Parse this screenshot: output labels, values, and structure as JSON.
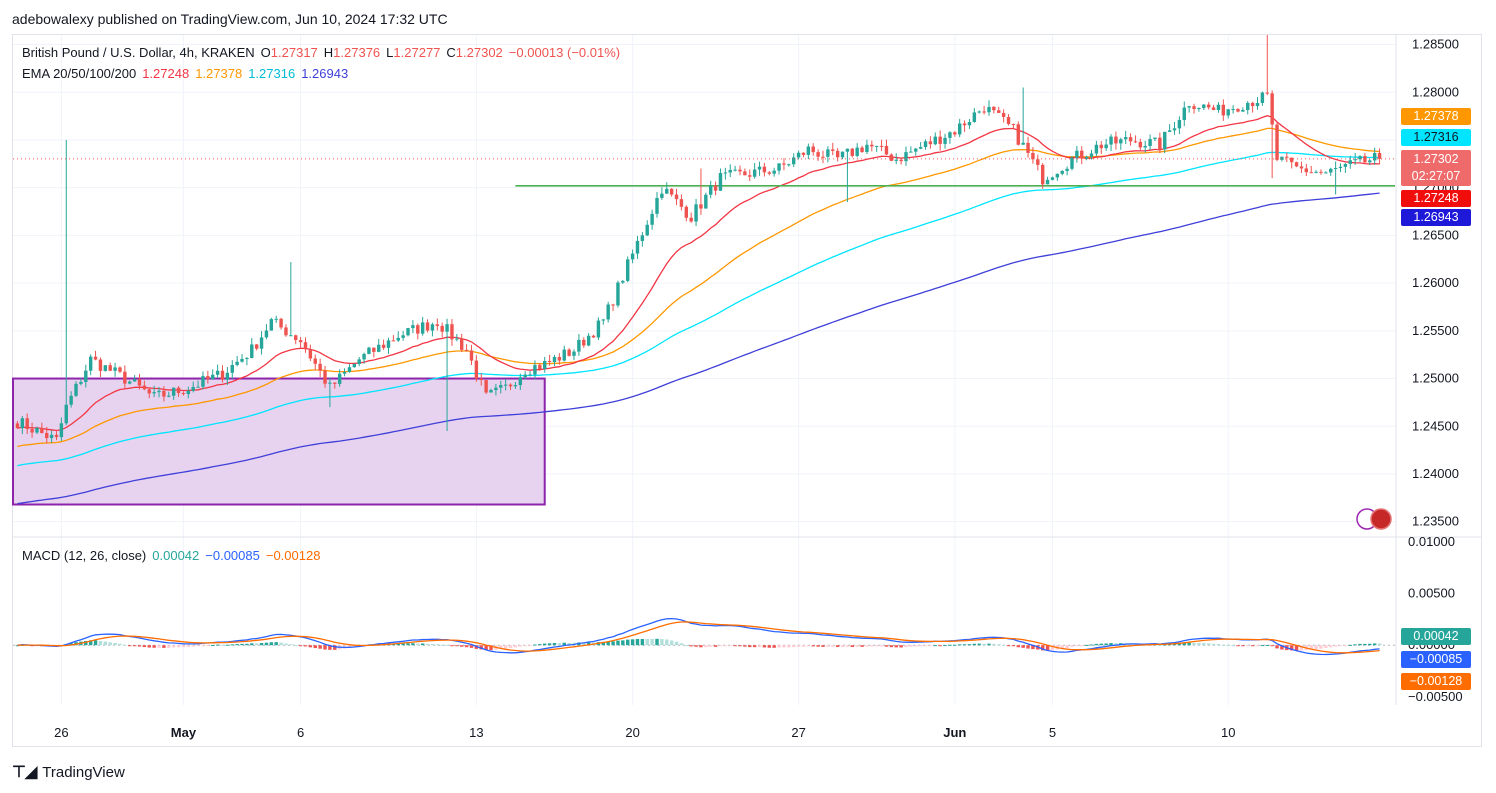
{
  "publisher": "adebowalexy published on TradingView.com, Jun 10, 2024 17:32 UTC",
  "footer_brand": "TradingView",
  "colors": {
    "up": "#26a69a",
    "down": "#ef5350",
    "ema20": "#f23645",
    "ema50": "#ff9800",
    "ema100": "#00e5ff",
    "ema200": "#3f3fd9",
    "support": "#4caf50",
    "box_fill": "#e7d3ef",
    "box_border": "#8e24aa",
    "macd": "#2962ff",
    "signal": "#ff6d00"
  },
  "price_legend": {
    "symbol": "British Pound / U.S. Dollar, 4h, KRAKEN",
    "o_label": "O",
    "o": "1.27317",
    "h_label": "H",
    "h": "1.27376",
    "l_label": "L",
    "l": "1.27277",
    "c_label": "C",
    "c": "1.27302",
    "change": "−0.00013 (−0.01%)"
  },
  "ema_legend": {
    "label": "EMA 20/50/100/200",
    "v1": "1.27248",
    "v2": "1.27378",
    "v3": "1.27316",
    "v4": "1.26943"
  },
  "macd_legend": {
    "label": "MACD (12, 26, close)",
    "v1": "0.00042",
    "v2": "−0.00085",
    "v3": "−0.00128"
  },
  "price_badges": {
    "ema50": "1.27378",
    "ema100": "1.27316",
    "last": "1.27302",
    "countdown": "02:27:07",
    "ema20": "1.27248",
    "ema200": "1.26943"
  },
  "macd_badges": {
    "hist": "0.00042",
    "macd": "−0.00085",
    "signal": "−0.00128"
  },
  "chart_data": {
    "type": "candlestick",
    "price_axis": {
      "ticks": [
        "1.28500",
        "1.28000",
        "1.27500",
        "1.27000",
        "1.26500",
        "1.26000",
        "1.25500",
        "1.25000",
        "1.24500",
        "1.24000",
        "1.23500"
      ],
      "range": [
        1.2335,
        1.286
      ]
    },
    "macd_axis": {
      "ticks": [
        "0.01000",
        "0.00500",
        "0.00000",
        "−0.00500"
      ],
      "range": [
        -0.0058,
        0.0105
      ]
    },
    "x_ticks": [
      "26",
      "May",
      "6",
      "13",
      "20",
      "27",
      "Jun",
      "5",
      "10"
    ],
    "support_level": 1.2702,
    "box": {
      "price_top": 1.25,
      "price_bottom": 1.2368,
      "x_start_bar": 0,
      "x_end_bar": 108
    },
    "anchors": [
      [
        0,
        1.2455
      ],
      [
        8,
        1.2435
      ],
      [
        10,
        1.247
      ],
      [
        15,
        1.252
      ],
      [
        22,
        1.25
      ],
      [
        28,
        1.248
      ],
      [
        35,
        1.249
      ],
      [
        42,
        1.2505
      ],
      [
        48,
        1.253
      ],
      [
        52,
        1.256
      ],
      [
        58,
        1.254
      ],
      [
        64,
        1.249
      ],
      [
        70,
        1.252
      ],
      [
        78,
        1.2545
      ],
      [
        86,
        1.256
      ],
      [
        92,
        1.253
      ],
      [
        96,
        1.248
      ],
      [
        100,
        1.249
      ],
      [
        104,
        1.251
      ],
      [
        108,
        1.2515
      ],
      [
        114,
        1.253
      ],
      [
        120,
        1.256
      ],
      [
        126,
        1.263
      ],
      [
        132,
        1.27
      ],
      [
        138,
        1.267
      ],
      [
        144,
        1.271
      ],
      [
        150,
        1.2715
      ],
      [
        156,
        1.272
      ],
      [
        162,
        1.274
      ],
      [
        168,
        1.273
      ],
      [
        174,
        1.2745
      ],
      [
        180,
        1.273
      ],
      [
        186,
        1.2745
      ],
      [
        192,
        1.276
      ],
      [
        198,
        1.2785
      ],
      [
        204,
        1.276
      ],
      [
        210,
        1.271
      ],
      [
        216,
        1.273
      ],
      [
        222,
        1.2745
      ],
      [
        228,
        1.275
      ],
      [
        234,
        1.2745
      ],
      [
        240,
        1.279
      ],
      [
        246,
        1.278
      ],
      [
        252,
        1.279
      ],
      [
        256,
        1.2795
      ],
      [
        258,
        1.273
      ],
      [
        262,
        1.272
      ],
      [
        268,
        1.2715
      ],
      [
        274,
        1.2725
      ],
      [
        278,
        1.273
      ]
    ],
    "spikes": [
      {
        "bar": 10,
        "high": 1.275
      },
      {
        "bar": 64,
        "low": 1.247
      },
      {
        "bar": 140,
        "high": 1.272
      },
      {
        "bar": 206,
        "high": 1.2805
      },
      {
        "bar": 256,
        "high": 1.286
      },
      {
        "bar": 257,
        "low": 1.271
      },
      {
        "bar": 88,
        "low": 1.2445
      },
      {
        "bar": 56,
        "high": 1.2622
      },
      {
        "bar": 170,
        "low": 1.2685
      },
      {
        "bar": 270,
        "low": 1.2693
      }
    ],
    "ema_endpoints": {
      "ema20": 1.27248,
      "ema50": 1.27378,
      "ema100": 1.27316,
      "ema200": 1.26943
    },
    "last_close": 1.27302
  }
}
